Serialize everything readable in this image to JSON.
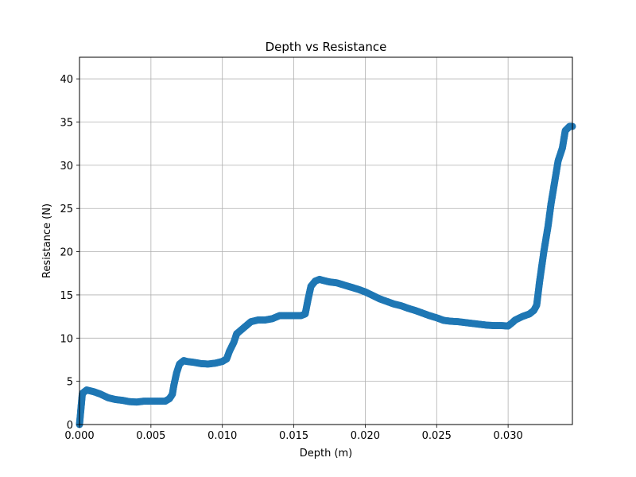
{
  "chart_data": {
    "type": "scatter",
    "title": "Depth vs Resistance",
    "xlabel": "Depth (m)",
    "ylabel": "Resistance (N)",
    "xlim": [
      0,
      0.0345
    ],
    "ylim": [
      0,
      42.5
    ],
    "xticks": [
      0.0,
      0.005,
      0.01,
      0.015,
      0.02,
      0.025,
      0.03
    ],
    "xtick_labels": [
      "0.000",
      "0.005",
      "0.010",
      "0.015",
      "0.020",
      "0.025",
      "0.030"
    ],
    "yticks": [
      0,
      5,
      10,
      15,
      20,
      25,
      30,
      35,
      40
    ],
    "ytick_labels": [
      "0",
      "5",
      "10",
      "15",
      "20",
      "25",
      "30",
      "35",
      "40"
    ],
    "grid": true,
    "marker_color": "#1f77b4",
    "series": [
      {
        "x": [
          0.0,
          0.0002,
          0.0005,
          0.001,
          0.0015,
          0.002,
          0.0025,
          0.003,
          0.0035,
          0.004,
          0.0045,
          0.005,
          0.0055,
          0.006,
          0.0063,
          0.0065,
          0.0066,
          0.0068,
          0.007,
          0.0073,
          0.0075,
          0.008,
          0.0085,
          0.009,
          0.0095,
          0.01,
          0.0103,
          0.0105,
          0.0108,
          0.011,
          0.0115,
          0.012,
          0.0125,
          0.013,
          0.0135,
          0.014,
          0.0145,
          0.015,
          0.0155,
          0.0158,
          0.016,
          0.0162,
          0.0165,
          0.0168,
          0.017,
          0.0175,
          0.018,
          0.0185,
          0.019,
          0.0195,
          0.02,
          0.0205,
          0.021,
          0.0215,
          0.022,
          0.0225,
          0.023,
          0.0235,
          0.024,
          0.0245,
          0.025,
          0.0255,
          0.026,
          0.0265,
          0.027,
          0.0275,
          0.028,
          0.0285,
          0.029,
          0.0295,
          0.03,
          0.0303,
          0.0305,
          0.031,
          0.0315,
          0.0318,
          0.032,
          0.0322,
          0.0325,
          0.0328,
          0.033,
          0.0332,
          0.0335,
          0.0338,
          0.034,
          0.0343,
          0.0345
        ],
        "y": [
          0.0,
          3.6,
          4.0,
          3.8,
          3.5,
          3.1,
          2.9,
          2.8,
          2.65,
          2.6,
          2.7,
          2.7,
          2.7,
          2.7,
          3.0,
          3.5,
          4.5,
          6.0,
          7.0,
          7.4,
          7.3,
          7.2,
          7.05,
          7.0,
          7.1,
          7.3,
          7.6,
          8.5,
          9.5,
          10.5,
          11.2,
          11.9,
          12.1,
          12.1,
          12.25,
          12.6,
          12.6,
          12.6,
          12.6,
          12.8,
          14.5,
          16.0,
          16.6,
          16.8,
          16.7,
          16.5,
          16.4,
          16.15,
          15.9,
          15.65,
          15.35,
          14.95,
          14.55,
          14.25,
          13.95,
          13.75,
          13.45,
          13.2,
          12.9,
          12.6,
          12.35,
          12.05,
          11.95,
          11.9,
          11.8,
          11.7,
          11.6,
          11.5,
          11.45,
          11.45,
          11.4,
          11.8,
          12.1,
          12.5,
          12.8,
          13.2,
          13.8,
          16.5,
          20.0,
          23.0,
          25.5,
          27.5,
          30.5,
          32.0,
          34.0,
          34.5,
          34.5
        ]
      }
    ]
  }
}
